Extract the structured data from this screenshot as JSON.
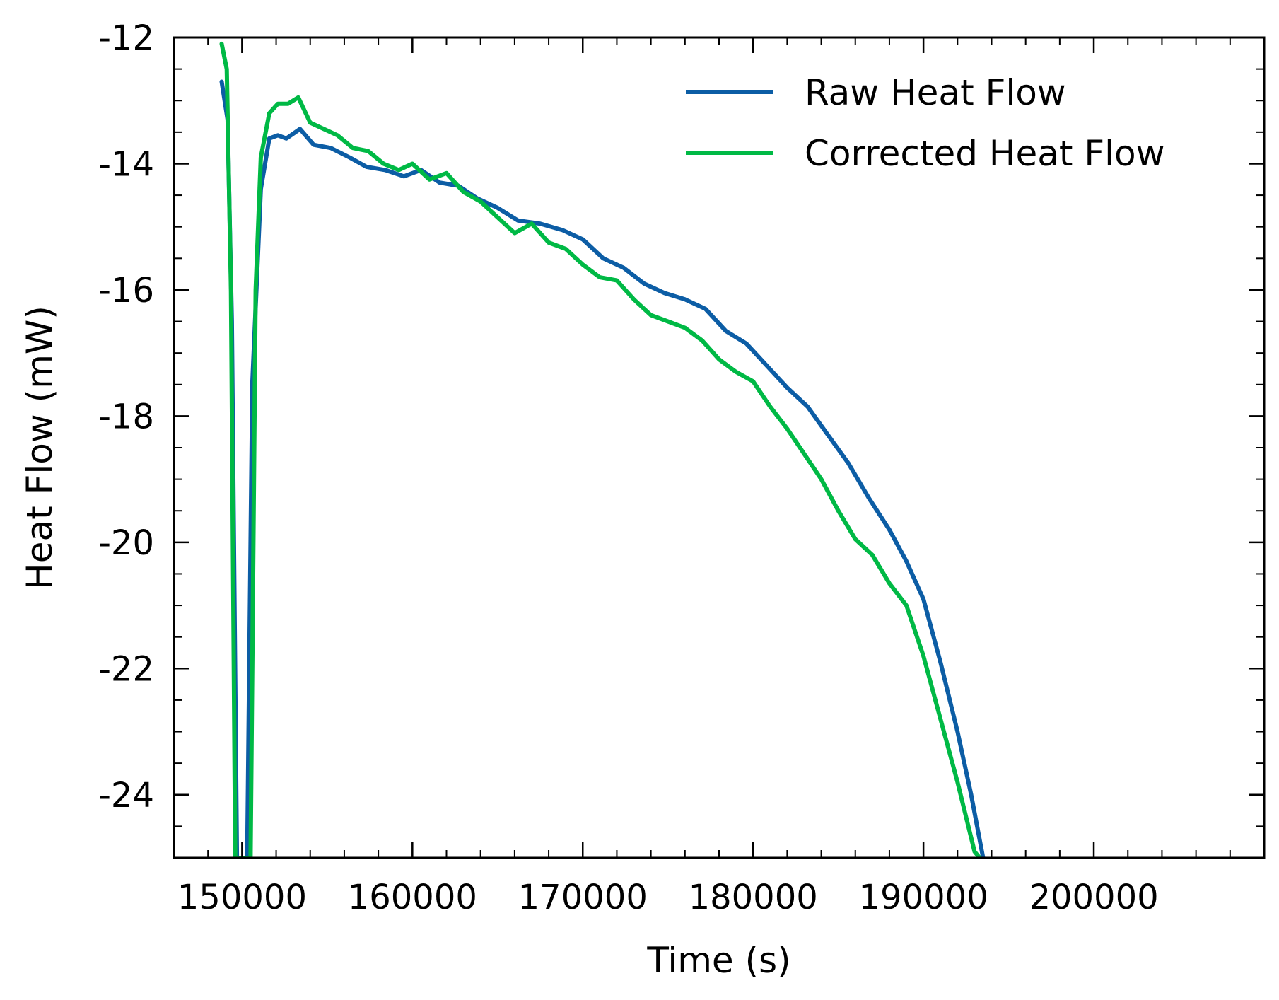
{
  "chart_data": {
    "type": "line",
    "title": "",
    "xlabel": "Time (s)",
    "ylabel": "Heat Flow (mW)",
    "xlim": [
      146000,
      210000
    ],
    "ylim": [
      -25,
      -12
    ],
    "x_ticks": [
      150000,
      160000,
      170000,
      180000,
      190000,
      200000
    ],
    "x_tick_labels": [
      "150000",
      "160000",
      "170000",
      "180000",
      "190000",
      "200000"
    ],
    "y_ticks": [
      -12,
      -14,
      -16,
      -18,
      -20,
      -22,
      -24
    ],
    "y_tick_labels": [
      "-12",
      "-14",
      "-16",
      "-18",
      "-20",
      "-22",
      "-24"
    ],
    "grid": false,
    "legend_position": "top-right",
    "series": [
      {
        "name": "Raw Heat Flow",
        "color": "#0C5DA5",
        "x": [
          148800,
          149150,
          149400,
          149700,
          150000,
          150300,
          150600,
          151100,
          151600,
          152100,
          152600,
          153400,
          154200,
          155200,
          156300,
          157300,
          158400,
          159500,
          160500,
          161600,
          162700,
          163800,
          165000,
          166200,
          167500,
          168800,
          170000,
          171200,
          172400,
          173600,
          174800,
          176000,
          177200,
          178400,
          179600,
          180800,
          182000,
          183200,
          184400,
          185600,
          186800,
          188000,
          189000,
          190000,
          191000,
          192000,
          192800,
          193500
        ],
        "y": [
          -12.7,
          -13.3,
          -16.5,
          -25,
          -25,
          -25,
          -17.5,
          -14.4,
          -13.6,
          -13.55,
          -13.6,
          -13.45,
          -13.7,
          -13.75,
          -13.9,
          -14.05,
          -14.1,
          -14.2,
          -14.1,
          -14.3,
          -14.35,
          -14.55,
          -14.7,
          -14.9,
          -14.95,
          -15.05,
          -15.2,
          -15.5,
          -15.65,
          -15.9,
          -16.05,
          -16.15,
          -16.3,
          -16.65,
          -16.85,
          -17.2,
          -17.55,
          -17.85,
          -18.3,
          -18.75,
          -19.3,
          -19.8,
          -20.3,
          -20.9,
          -21.9,
          -23.0,
          -24.0,
          -25.0
        ]
      },
      {
        "name": "Corrected Heat Flow",
        "color": "#00B945",
        "x": [
          148800,
          149100,
          149350,
          149600,
          149900,
          150200,
          150500,
          150800,
          151100,
          151600,
          152100,
          152700,
          153300,
          154000,
          154800,
          155600,
          156500,
          157400,
          158300,
          159200,
          160000,
          161000,
          162000,
          163000,
          164000,
          165000,
          166000,
          167000,
          168000,
          169000,
          170000,
          171000,
          172000,
          173000,
          174000,
          175000,
          176000,
          177000,
          178000,
          179000,
          180000,
          181000,
          182000,
          183000,
          184000,
          185000,
          186000,
          187000,
          188000,
          189000,
          190000,
          191000,
          192000,
          193000,
          193300
        ],
        "y": [
          -12.1,
          -12.5,
          -16.0,
          -25,
          -25,
          -25,
          -25,
          -16.0,
          -13.9,
          -13.2,
          -13.05,
          -13.05,
          -12.95,
          -13.35,
          -13.45,
          -13.55,
          -13.75,
          -13.8,
          -14.0,
          -14.1,
          -14.0,
          -14.25,
          -14.15,
          -14.45,
          -14.6,
          -14.85,
          -15.1,
          -14.95,
          -15.25,
          -15.35,
          -15.6,
          -15.8,
          -15.85,
          -16.15,
          -16.4,
          -16.5,
          -16.6,
          -16.8,
          -17.1,
          -17.3,
          -17.45,
          -17.85,
          -18.2,
          -18.6,
          -19.0,
          -19.5,
          -19.95,
          -20.2,
          -20.65,
          -21.0,
          -21.8,
          -22.8,
          -23.8,
          -24.9,
          -25.0
        ]
      }
    ]
  }
}
